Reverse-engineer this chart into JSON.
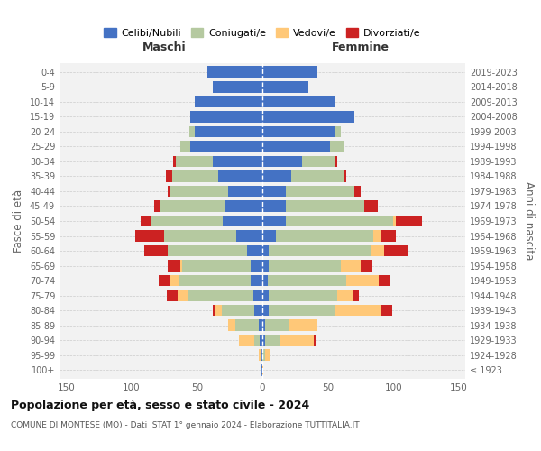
{
  "age_groups": [
    "100+",
    "95-99",
    "90-94",
    "85-89",
    "80-84",
    "75-79",
    "70-74",
    "65-69",
    "60-64",
    "55-59",
    "50-54",
    "45-49",
    "40-44",
    "35-39",
    "30-34",
    "25-29",
    "20-24",
    "15-19",
    "10-14",
    "5-9",
    "0-4"
  ],
  "birth_years": [
    "≤ 1923",
    "1924-1928",
    "1929-1933",
    "1934-1938",
    "1939-1943",
    "1944-1948",
    "1949-1953",
    "1954-1958",
    "1959-1963",
    "1964-1968",
    "1969-1973",
    "1974-1978",
    "1979-1983",
    "1984-1988",
    "1989-1993",
    "1994-1998",
    "1999-2003",
    "2004-2008",
    "2009-2013",
    "2014-2018",
    "2019-2023"
  ],
  "colors": {
    "celibi": "#4472c4",
    "coniugati": "#b5c9a0",
    "vedovi": "#ffc878",
    "divorziati": "#cc2222"
  },
  "maschi": {
    "celibi": [
      1,
      1,
      2,
      3,
      6,
      7,
      9,
      9,
      12,
      20,
      30,
      28,
      26,
      34,
      38,
      55,
      52,
      55,
      52,
      38,
      42
    ],
    "coniugati": [
      0,
      0,
      4,
      18,
      25,
      50,
      55,
      52,
      60,
      55,
      55,
      50,
      44,
      35,
      28,
      8,
      4,
      0,
      0,
      0,
      0
    ],
    "vedovi": [
      0,
      2,
      12,
      5,
      5,
      8,
      6,
      2,
      0,
      0,
      0,
      0,
      0,
      0,
      0,
      0,
      0,
      0,
      0,
      0,
      0
    ],
    "divorziati": [
      0,
      0,
      0,
      0,
      2,
      8,
      9,
      9,
      18,
      22,
      8,
      5,
      2,
      5,
      2,
      0,
      0,
      0,
      0,
      0,
      0
    ]
  },
  "femmine": {
    "celibi": [
      0,
      0,
      2,
      2,
      5,
      5,
      4,
      5,
      5,
      10,
      18,
      18,
      18,
      22,
      30,
      52,
      55,
      70,
      55,
      35,
      42
    ],
    "coniugati": [
      0,
      2,
      12,
      18,
      50,
      52,
      60,
      55,
      78,
      75,
      82,
      60,
      52,
      40,
      25,
      10,
      5,
      0,
      0,
      0,
      0
    ],
    "vedovi": [
      1,
      4,
      25,
      22,
      35,
      12,
      25,
      15,
      10,
      5,
      2,
      0,
      0,
      0,
      0,
      0,
      0,
      0,
      0,
      0,
      0
    ],
    "divorziati": [
      0,
      0,
      2,
      0,
      9,
      5,
      9,
      9,
      18,
      12,
      20,
      10,
      5,
      2,
      2,
      0,
      0,
      0,
      0,
      0,
      0
    ]
  },
  "xlim": 155,
  "title": "Popolazione per età, sesso e stato civile - 2024",
  "subtitle": "COMUNE DI MONTESE (MO) - Dati ISTAT 1° gennaio 2024 - Elaborazione TUTTITALIA.IT",
  "ylabel_left": "Fasce di età",
  "ylabel_right": "Anni di nascita",
  "xlabel_left": "Maschi",
  "xlabel_right": "Femmine",
  "background_color": "#ffffff"
}
